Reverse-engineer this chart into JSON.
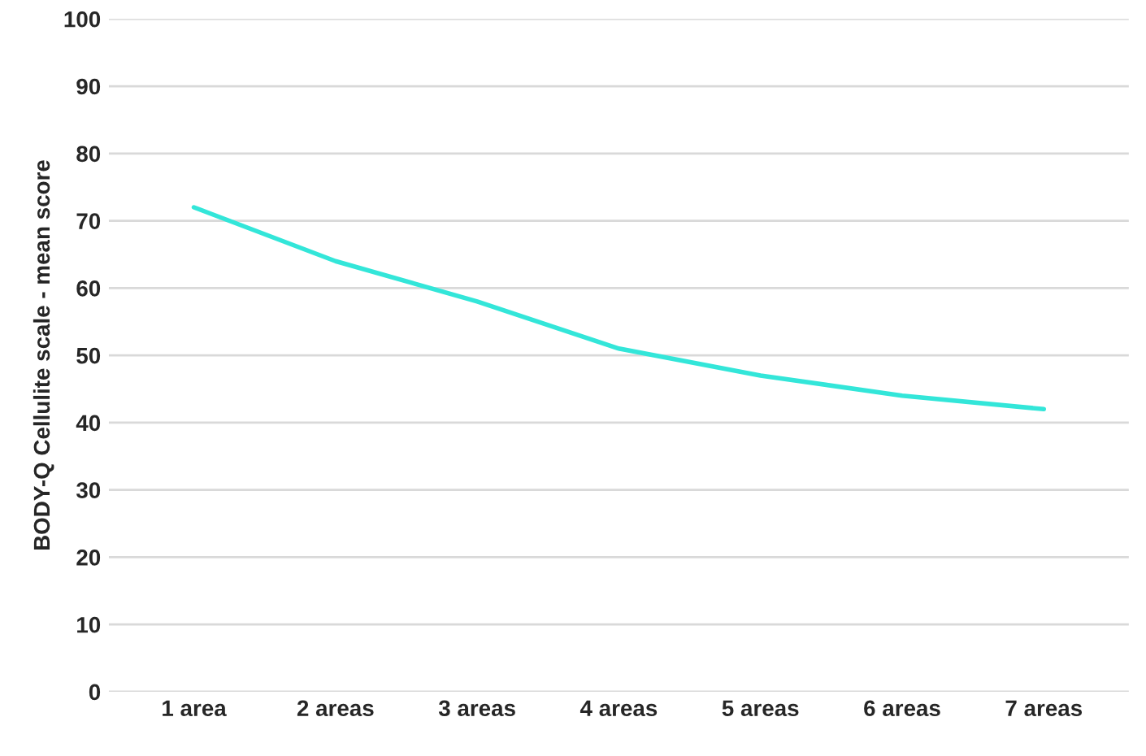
{
  "chart_data": {
    "type": "line",
    "ylabel": "BODY-Q Cellulite scale - mean score",
    "categories": [
      "1 area",
      "2 areas",
      "3 areas",
      "4 areas",
      "5 areas",
      "6 areas",
      "7 areas"
    ],
    "series": [
      {
        "color": "#33e6d9",
        "values": [
          72,
          64,
          58,
          51,
          47,
          44,
          42
        ]
      }
    ],
    "ylim": [
      0,
      100
    ],
    "yticks": [
      0,
      10,
      20,
      30,
      40,
      50,
      60,
      70,
      80,
      90,
      100
    ],
    "grid": "y",
    "marker": "none",
    "line_style": "solid"
  }
}
